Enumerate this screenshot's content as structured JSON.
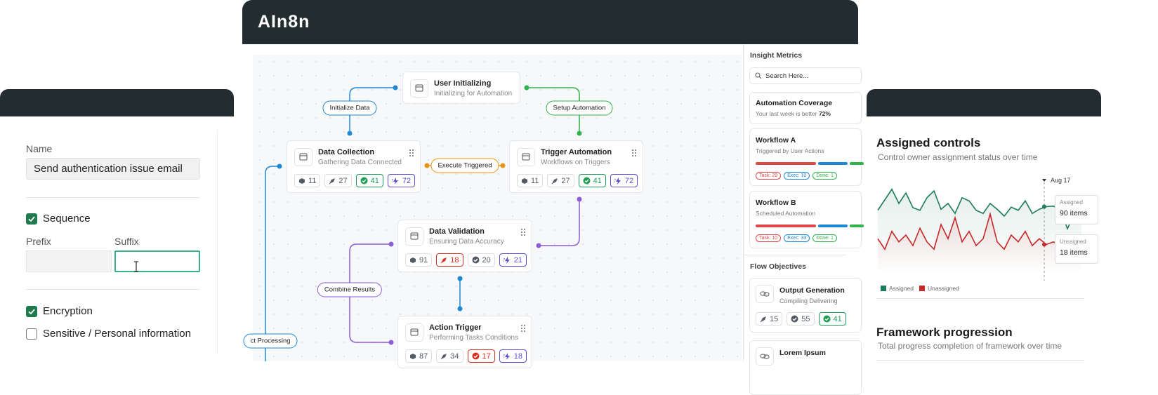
{
  "app_title": "AIn8n",
  "form": {
    "name_label": "Name",
    "name_value": "Send authentication issue email",
    "prefix_label": "Prefix",
    "suffix_label": "Suffix",
    "options": [
      {
        "label": "Sequence",
        "checked": true
      },
      {
        "label": "Encryption",
        "checked": true
      },
      {
        "label": "Sensitive / Personal information",
        "checked": false
      }
    ]
  },
  "workflow": {
    "nodes": [
      {
        "title": "User Initializing",
        "subtitle": "Initializing for Automation",
        "badges": []
      },
      {
        "title": "Data Collection",
        "subtitle": "Gathering Data Connected",
        "badges": [
          {
            "value": 11,
            "color": "#555b66"
          },
          {
            "value": 27,
            "color": "#555b66"
          },
          {
            "value": 41,
            "color": "#1e9e55"
          },
          {
            "value": 72,
            "color": "#5b4fd6"
          }
        ]
      },
      {
        "title": "Trigger Automation",
        "subtitle": "Workflows on Triggers",
        "badges": [
          {
            "value": 11,
            "color": "#555b66"
          },
          {
            "value": 27,
            "color": "#555b66"
          },
          {
            "value": 41,
            "color": "#1e9e55"
          },
          {
            "value": 72,
            "color": "#5b4fd6"
          }
        ]
      },
      {
        "title": "Data Validation",
        "subtitle": "Ensuring Data Accuracy",
        "badges": [
          {
            "value": 91,
            "color": "#555b66"
          },
          {
            "value": 18,
            "color": "#d93025"
          },
          {
            "value": 20,
            "color": "#555b66"
          },
          {
            "value": 21,
            "color": "#5b4fd6"
          }
        ]
      },
      {
        "title": "Action Trigger",
        "subtitle": "Performing Tasks Conditions",
        "badges": [
          {
            "value": 87,
            "color": "#555b66"
          },
          {
            "value": 34,
            "color": "#555b66"
          },
          {
            "value": 17,
            "color": "#d93025"
          },
          {
            "value": 18,
            "color": "#5b4fd6"
          }
        ]
      }
    ],
    "edge_labels": [
      "Initialize Data",
      "Setup Automation",
      "Execute Triggered",
      "Combine Results",
      "ct Processing"
    ]
  },
  "sidebar": {
    "title": "Insight Metrics",
    "search_placeholder": "Search Here...",
    "coverage": {
      "title": "Automation Coverage",
      "text": "Your last week is better",
      "value": "72%"
    },
    "workflows": [
      {
        "title": "Workflow A",
        "subtitle": "Triggered by User Actions",
        "tags": [
          "Task: 29",
          "Exec: 10",
          "Done: 1"
        ]
      },
      {
        "title": "Workflow B",
        "subtitle": "Scheduled Automation",
        "tags": [
          "Task: 10",
          "Exec: 33",
          "Done: 1"
        ]
      }
    ],
    "objectives_title": "Flow Objectives",
    "objectives": [
      {
        "title": "Output Generation",
        "subtitle": "Compiling Delivering",
        "badges": [
          {
            "value": 15,
            "color": "#555b66"
          },
          {
            "value": 55,
            "color": "#555b66"
          },
          {
            "value": 41,
            "color": "#1e9e55"
          }
        ]
      },
      {
        "title": "Lorem Ipsum",
        "badges": []
      }
    ]
  },
  "chart_panel": {
    "title": "Assigned controls",
    "subtitle": "Control owner assignment status over time",
    "marker_label": "Aug 17",
    "tooltip": [
      {
        "label": "Assigned",
        "value": "90 items"
      },
      {
        "label": "Unssigned",
        "value": "18 items"
      }
    ],
    "series": [
      {
        "name": "Assigned",
        "color": "#1d7a5a",
        "values": [
          83,
          103,
          123,
          96,
          116,
          88,
          83,
          107,
          120,
          85,
          96,
          77,
          107,
          101,
          83,
          77,
          96,
          85,
          72,
          89,
          83,
          101,
          77,
          85,
          90,
          91,
          85,
          48,
          77,
          83
        ]
      },
      {
        "name": "Unassigned",
        "color": "#c62828",
        "values": [
          29,
          9,
          43,
          23,
          36,
          16,
          49,
          23,
          9,
          56,
          29,
          69,
          23,
          43,
          16,
          29,
          76,
          23,
          9,
          36,
          23,
          43,
          16,
          29,
          18,
          23,
          16,
          3,
          16,
          9
        ]
      }
    ],
    "next_title": "Framework progression",
    "next_subtitle": "Total progress completion of framework over time"
  }
}
